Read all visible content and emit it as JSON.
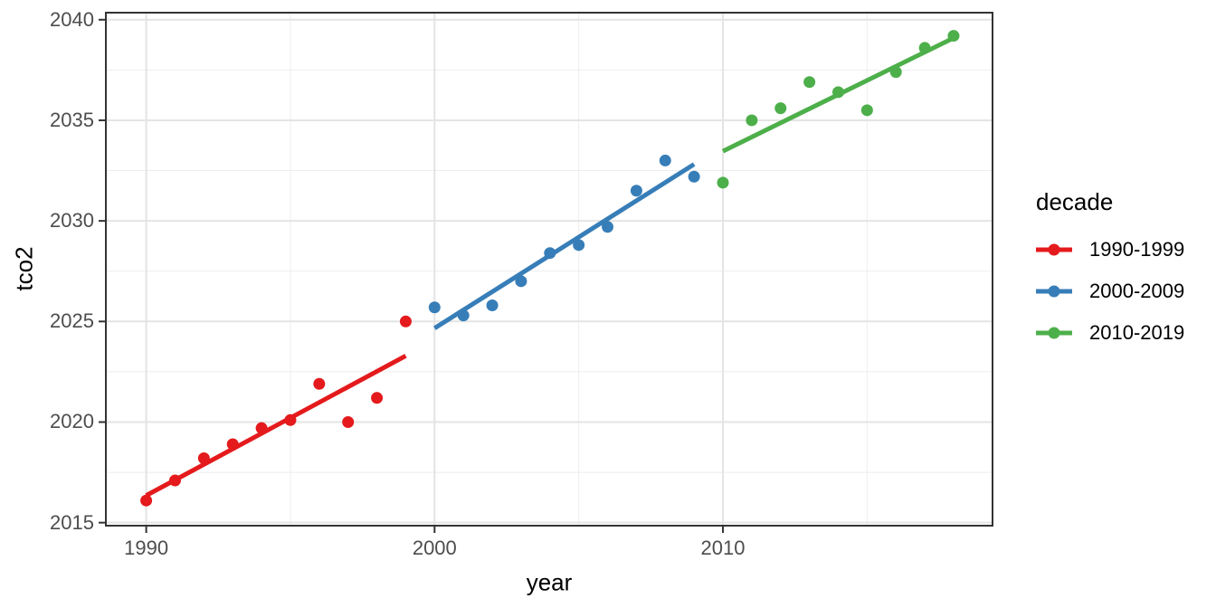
{
  "chart_data": {
    "type": "scatter",
    "title": "",
    "xlabel": "year",
    "ylabel": "tco2",
    "grid": true,
    "legend_position": "right",
    "legend_title": "decade",
    "x_range": [
      1988.6,
      2019.35
    ],
    "y_range": [
      2014.85,
      2040.35
    ],
    "x_ticks": [
      1990,
      2000,
      2010
    ],
    "x_minor_ticks": [
      1995,
      2005,
      2015
    ],
    "y_ticks": [
      2015,
      2020,
      2025,
      2030,
      2035,
      2040
    ],
    "y_minor_ticks": [
      2017.5,
      2022.5,
      2027.5,
      2032.5,
      2037.5
    ],
    "trend": "ols-per-series",
    "series": [
      {
        "name": "1990-1999",
        "color": "#E41A1C",
        "x": [
          1990,
          1991,
          1992,
          1993,
          1994,
          1995,
          1996,
          1997,
          1998,
          1999
        ],
        "y": [
          2016.1,
          2017.1,
          2018.2,
          2018.9,
          2019.7,
          2020.1,
          2021.9,
          2020.0,
          2021.2,
          2025.0
        ]
      },
      {
        "name": "2000-2009",
        "color": "#377EB8",
        "x": [
          2000,
          2001,
          2002,
          2003,
          2004,
          2005,
          2006,
          2007,
          2008,
          2009
        ],
        "y": [
          2025.7,
          2025.3,
          2025.8,
          2027.0,
          2028.4,
          2028.8,
          2029.7,
          2031.5,
          2033.0,
          2032.2
        ]
      },
      {
        "name": "2010-2019",
        "color": "#4DAF4A",
        "x": [
          2010,
          2011,
          2012,
          2013,
          2014,
          2015,
          2016,
          2017,
          2018
        ],
        "y": [
          2031.9,
          2035.0,
          2035.6,
          2036.9,
          2036.4,
          2035.5,
          2037.4,
          2038.6,
          2039.2
        ]
      }
    ],
    "style": {
      "panel_border_color": "#333333",
      "grid_major_color": "#e4e4e4",
      "grid_minor_color": "#ededed",
      "tick_color": "#333333",
      "tick_label_color": "#4d4d4d",
      "point_radius": 6.5,
      "line_width": 5
    }
  }
}
